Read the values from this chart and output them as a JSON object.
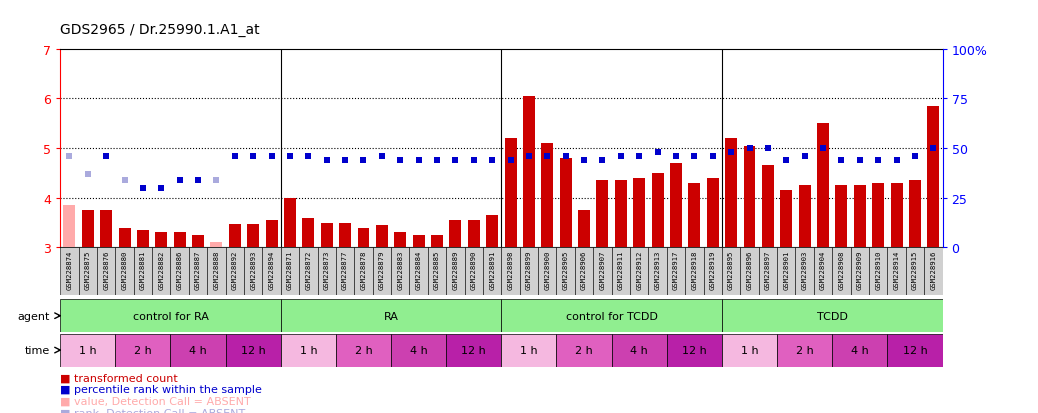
{
  "title": "GDS2965 / Dr.25990.1.A1_at",
  "ylim_left": [
    3,
    7
  ],
  "ylim_right": [
    0,
    100
  ],
  "yticks_left": [
    3,
    4,
    5,
    6,
    7
  ],
  "yticks_right": [
    0,
    25,
    50,
    75,
    100
  ],
  "samples": [
    "GSM228874",
    "GSM228875",
    "GSM228876",
    "GSM228880",
    "GSM228881",
    "GSM228882",
    "GSM228886",
    "GSM228887",
    "GSM228888",
    "GSM228892",
    "GSM228893",
    "GSM228894",
    "GSM228871",
    "GSM228872",
    "GSM228873",
    "GSM228877",
    "GSM228878",
    "GSM228879",
    "GSM228883",
    "GSM228884",
    "GSM228885",
    "GSM228889",
    "GSM228890",
    "GSM228891",
    "GSM228898",
    "GSM228899",
    "GSM228900",
    "GSM228905",
    "GSM228906",
    "GSM228907",
    "GSM228911",
    "GSM228912",
    "GSM228913",
    "GSM228917",
    "GSM228918",
    "GSM228919",
    "GSM228895",
    "GSM228896",
    "GSM228897",
    "GSM228901",
    "GSM228903",
    "GSM228904",
    "GSM228908",
    "GSM228909",
    "GSM228910",
    "GSM228914",
    "GSM228915",
    "GSM228916"
  ],
  "bar_values": [
    3.85,
    3.75,
    3.75,
    3.4,
    3.35,
    3.3,
    3.3,
    3.25,
    3.1,
    3.48,
    3.48,
    3.55,
    4.0,
    3.6,
    3.5,
    3.5,
    3.4,
    3.45,
    3.3,
    3.25,
    3.25,
    3.55,
    3.55,
    3.65,
    5.2,
    6.05,
    5.1,
    4.8,
    3.75,
    4.35,
    4.35,
    4.4,
    4.5,
    4.7,
    4.3,
    4.4,
    5.2,
    5.05,
    4.65,
    4.15,
    4.25,
    5.5,
    4.25,
    4.25,
    4.3,
    4.3,
    4.35,
    5.85
  ],
  "bar_absent": [
    true,
    false,
    false,
    false,
    false,
    false,
    false,
    false,
    true,
    false,
    false,
    false,
    false,
    false,
    false,
    false,
    false,
    false,
    false,
    false,
    false,
    false,
    false,
    false,
    false,
    false,
    false,
    false,
    false,
    false,
    false,
    false,
    false,
    false,
    false,
    false,
    false,
    false,
    false,
    false,
    false,
    false,
    false,
    false,
    false,
    false,
    false,
    false
  ],
  "rank_values_pct": [
    46,
    37,
    46,
    34,
    30,
    30,
    34,
    34,
    34,
    46,
    46,
    46,
    46,
    46,
    44,
    44,
    44,
    46,
    44,
    44,
    44,
    44,
    44,
    44,
    44,
    46,
    46,
    46,
    44,
    44,
    46,
    46,
    48,
    46,
    46,
    46,
    48,
    50,
    50,
    44,
    46,
    50,
    44,
    44,
    44,
    44,
    46,
    50
  ],
  "rank_absent": [
    true,
    true,
    false,
    true,
    false,
    false,
    false,
    false,
    true,
    false,
    false,
    false,
    false,
    false,
    false,
    false,
    false,
    false,
    false,
    false,
    false,
    false,
    false,
    false,
    false,
    false,
    false,
    false,
    false,
    false,
    false,
    false,
    false,
    false,
    false,
    false,
    false,
    false,
    false,
    false,
    false,
    false,
    false,
    false,
    false,
    false,
    false,
    false
  ],
  "bar_color_present": "#cc0000",
  "bar_color_absent": "#ffaaaa",
  "rank_color_present": "#0000cc",
  "rank_color_absent": "#aaaadd",
  "agent_groups": [
    {
      "label": "control for RA",
      "start": 0,
      "end": 12
    },
    {
      "label": "RA",
      "start": 12,
      "end": 24
    },
    {
      "label": "control for TCDD",
      "start": 24,
      "end": 36
    },
    {
      "label": "TCDD",
      "start": 36,
      "end": 48
    }
  ],
  "agent_color": "#90EE90",
  "time_groups": [
    {
      "label": "1 h",
      "start": 0,
      "end": 3,
      "shade": 0
    },
    {
      "label": "2 h",
      "start": 3,
      "end": 6,
      "shade": 1
    },
    {
      "label": "4 h",
      "start": 6,
      "end": 9,
      "shade": 2
    },
    {
      "label": "12 h",
      "start": 9,
      "end": 12,
      "shade": 3
    },
    {
      "label": "1 h",
      "start": 12,
      "end": 15,
      "shade": 0
    },
    {
      "label": "2 h",
      "start": 15,
      "end": 18,
      "shade": 1
    },
    {
      "label": "4 h",
      "start": 18,
      "end": 21,
      "shade": 2
    },
    {
      "label": "12 h",
      "start": 21,
      "end": 24,
      "shade": 3
    },
    {
      "label": "1 h",
      "start": 24,
      "end": 27,
      "shade": 0
    },
    {
      "label": "2 h",
      "start": 27,
      "end": 30,
      "shade": 1
    },
    {
      "label": "4 h",
      "start": 30,
      "end": 33,
      "shade": 2
    },
    {
      "label": "12 h",
      "start": 33,
      "end": 36,
      "shade": 3
    },
    {
      "label": "1 h",
      "start": 36,
      "end": 39,
      "shade": 0
    },
    {
      "label": "2 h",
      "start": 39,
      "end": 42,
      "shade": 1
    },
    {
      "label": "4 h",
      "start": 42,
      "end": 45,
      "shade": 2
    },
    {
      "label": "12 h",
      "start": 45,
      "end": 48,
      "shade": 3
    }
  ],
  "time_colors": [
    "#f5b8e0",
    "#e060c0",
    "#cc40b0",
    "#b820a8"
  ],
  "group_separators": [
    11.5,
    23.5,
    35.5
  ],
  "legend": [
    {
      "label": "transformed count",
      "color": "#cc0000"
    },
    {
      "label": "percentile rank within the sample",
      "color": "#0000cc"
    },
    {
      "label": "value, Detection Call = ABSENT",
      "color": "#ffaaaa"
    },
    {
      "label": "rank, Detection Call = ABSENT",
      "color": "#aaaadd"
    }
  ]
}
